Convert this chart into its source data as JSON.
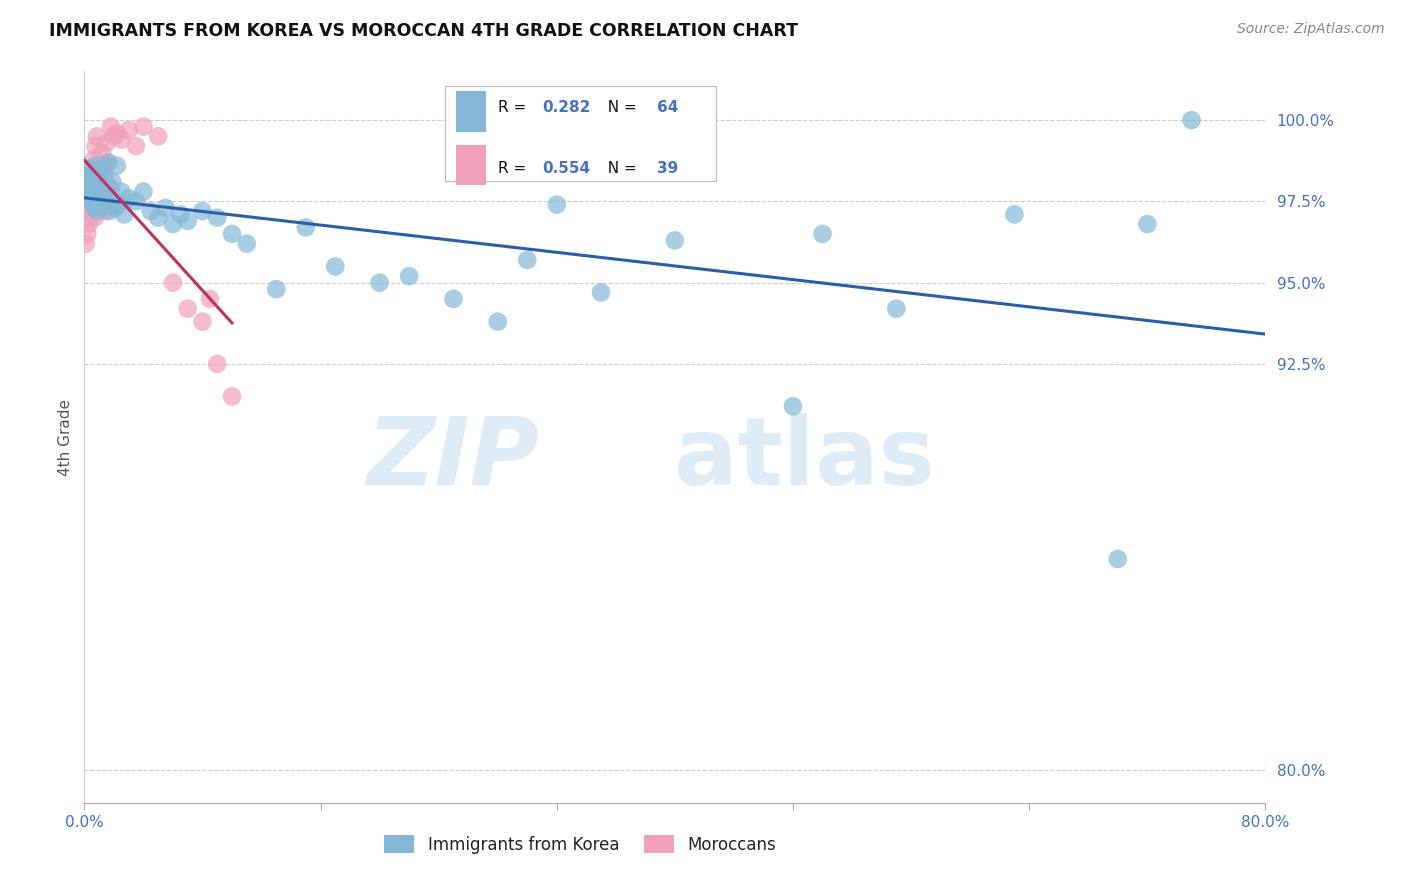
{
  "title": "IMMIGRANTS FROM KOREA VS MOROCCAN 4TH GRADE CORRELATION CHART",
  "source": "Source: ZipAtlas.com",
  "ylabel": "4th Grade",
  "xlim": [
    0.0,
    80.0
  ],
  "ylim": [
    79.0,
    101.5
  ],
  "yticks": [
    80.0,
    92.5,
    95.0,
    97.5,
    100.0
  ],
  "ytick_labels": [
    "80.0%",
    "92.5%",
    "95.0%",
    "97.5%",
    "100.0%"
  ],
  "blue_R": 0.282,
  "blue_N": 64,
  "pink_R": 0.554,
  "pink_N": 39,
  "blue_color": "#85B8D8",
  "pink_color": "#F0A0B8",
  "blue_line_color": "#2B5EA7",
  "pink_line_color": "#C03060",
  "legend_label_blue": "Immigrants from Korea",
  "legend_label_pink": "Moroccans",
  "watermark_zip": "ZIP",
  "watermark_atlas": "atlas",
  "blue_x": [
    0.1,
    0.2,
    0.25,
    0.3,
    0.35,
    0.4,
    0.45,
    0.5,
    0.55,
    0.6,
    0.65,
    0.7,
    0.75,
    0.8,
    0.85,
    0.9,
    0.95,
    1.0,
    1.1,
    1.2,
    1.3,
    1.4,
    1.5,
    1.6,
    1.7,
    1.8,
    1.9,
    2.0,
    2.1,
    2.2,
    2.3,
    2.5,
    2.7,
    3.0,
    3.5,
    4.0,
    4.5,
    5.0,
    5.5,
    6.0,
    6.5,
    7.0,
    8.0,
    9.0,
    10.0,
    11.0,
    13.0,
    15.0,
    17.0,
    20.0,
    22.0,
    25.0,
    28.0,
    30.0,
    32.0,
    35.0,
    40.0,
    48.0,
    50.0,
    55.0,
    63.0,
    70.0,
    72.0,
    75.0
  ],
  "blue_y": [
    98.2,
    97.8,
    98.5,
    97.6,
    98.1,
    97.9,
    98.3,
    97.5,
    98.0,
    97.7,
    98.4,
    97.3,
    98.6,
    97.4,
    97.2,
    98.2,
    97.6,
    98.0,
    97.8,
    98.5,
    97.6,
    98.3,
    97.4,
    98.7,
    97.2,
    97.9,
    98.1,
    97.5,
    97.3,
    98.6,
    97.4,
    97.8,
    97.1,
    97.6,
    97.5,
    97.8,
    97.2,
    97.0,
    97.3,
    96.8,
    97.1,
    96.9,
    97.2,
    97.0,
    96.5,
    96.2,
    94.8,
    96.7,
    95.5,
    95.0,
    95.2,
    94.5,
    93.8,
    95.7,
    97.4,
    94.7,
    96.3,
    91.2,
    96.5,
    94.2,
    97.1,
    86.5,
    96.8,
    100.0
  ],
  "pink_x": [
    0.1,
    0.15,
    0.2,
    0.25,
    0.3,
    0.35,
    0.4,
    0.45,
    0.5,
    0.55,
    0.6,
    0.65,
    0.7,
    0.75,
    0.8,
    0.85,
    0.9,
    1.0,
    1.1,
    1.2,
    1.3,
    1.4,
    1.5,
    1.6,
    1.7,
    1.8,
    2.0,
    2.2,
    2.5,
    3.0,
    3.5,
    4.0,
    5.0,
    6.0,
    7.0,
    8.0,
    8.5,
    9.0,
    10.0
  ],
  "pink_y": [
    96.2,
    97.0,
    96.5,
    97.8,
    96.8,
    98.0,
    97.2,
    98.5,
    97.6,
    98.2,
    97.4,
    98.8,
    97.0,
    99.2,
    97.8,
    99.5,
    98.0,
    98.3,
    97.5,
    99.0,
    98.6,
    97.2,
    99.3,
    98.7,
    97.9,
    99.8,
    99.5,
    99.6,
    99.4,
    99.7,
    99.2,
    99.8,
    99.5,
    95.0,
    94.2,
    93.8,
    94.5,
    92.5,
    91.5
  ]
}
